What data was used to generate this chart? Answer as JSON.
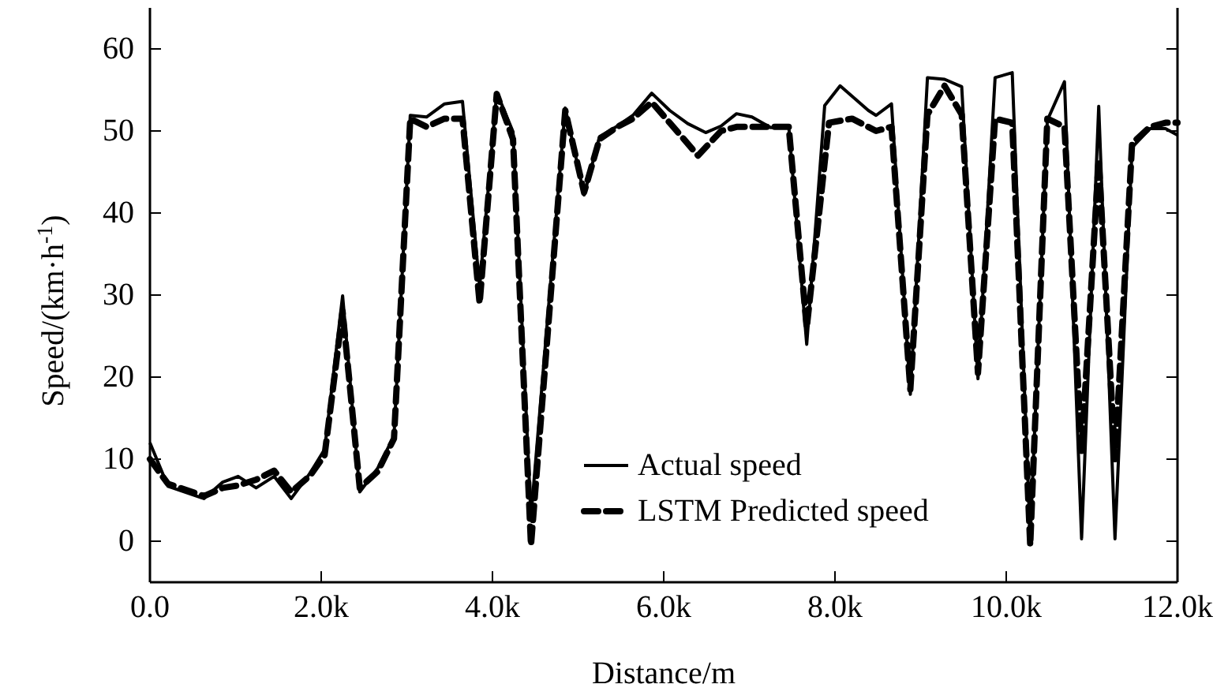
{
  "chart_data": {
    "type": "line",
    "xlabel": "Distance/m",
    "ylabel": "Speed/(km·h$^{-1}$)",
    "xlim": [
      0,
      12000
    ],
    "ylim": [
      -5,
      65
    ],
    "xticks": [
      {
        "value": 0,
        "label": "0.0"
      },
      {
        "value": 2000,
        "label": "2.0k"
      },
      {
        "value": 4000,
        "label": "4.0k"
      },
      {
        "value": 6000,
        "label": "6.0k"
      },
      {
        "value": 8000,
        "label": "8.0k"
      },
      {
        "value": 10000,
        "label": "10.0k"
      },
      {
        "value": 12000,
        "label": "12.0k"
      }
    ],
    "yticks": [
      0,
      10,
      20,
      30,
      40,
      50,
      60
    ],
    "legend": "bottom",
    "grid": false,
    "series": [
      {
        "name": "Actual speed",
        "color": "#000000",
        "line_style": "solid",
        "x": [
          0,
          210,
          630,
          850,
          1030,
          1240,
          1450,
          1650,
          1870,
          2040,
          2250,
          2450,
          2660,
          2850,
          3040,
          3230,
          3440,
          3650,
          3850,
          4050,
          4240,
          4450,
          4850,
          5070,
          5250,
          5460,
          5640,
          5860,
          6070,
          6280,
          6490,
          6670,
          6850,
          7030,
          7250,
          7460,
          7670,
          7880,
          8060,
          8390,
          8480,
          8660,
          8880,
          9080,
          9280,
          9480,
          9670,
          9870,
          10070,
          10280,
          10480,
          10680,
          10880,
          11080,
          11270,
          11470,
          11680,
          11860,
          12000
        ],
        "values": [
          12,
          6.7,
          5.2,
          7.2,
          7.9,
          6.5,
          7.9,
          5.2,
          8.3,
          11.2,
          29.9,
          6,
          8.9,
          12.8,
          51.9,
          51.7,
          53.3,
          53.6,
          31,
          54.7,
          49.9,
          3,
          52.8,
          42.2,
          49.3,
          50.6,
          51.9,
          54.6,
          52.5,
          50.9,
          49.8,
          50.6,
          52.1,
          51.7,
          50.4,
          50.6,
          24,
          53.1,
          55.5,
          52.5,
          51.9,
          53.3,
          17.9,
          56.5,
          56.3,
          55.4,
          19.8,
          56.5,
          57.1,
          0.3,
          51.3,
          56,
          0.3,
          53,
          0.3,
          48,
          50.3,
          50.3,
          49.5
        ]
      },
      {
        "name": "LSTM Predicted speed",
        "color": "#000000",
        "line_style": "dashed",
        "x": [
          0,
          210,
          630,
          850,
          1030,
          1240,
          1450,
          1650,
          1870,
          2040,
          2250,
          2450,
          2660,
          2850,
          3040,
          3230,
          3440,
          3650,
          3850,
          4050,
          4240,
          4450,
          4850,
          5070,
          5250,
          5460,
          5640,
          5860,
          6070,
          6400,
          6670,
          6850,
          7030,
          7250,
          7460,
          7670,
          7930,
          8200,
          8480,
          8660,
          8880,
          9080,
          9280,
          9480,
          9670,
          9870,
          10070,
          10280,
          10480,
          10680,
          10880,
          11080,
          11270,
          11470,
          11680,
          11860,
          12000
        ],
        "values": [
          10,
          7,
          5.5,
          6.5,
          6.8,
          7.5,
          8.6,
          6,
          8,
          10.5,
          28,
          6.5,
          8.5,
          12.5,
          51.5,
          50.5,
          51.5,
          51.5,
          29,
          54.5,
          49,
          -0.5,
          52.5,
          42.5,
          49,
          50.5,
          51.5,
          53.5,
          51,
          47,
          50,
          50.5,
          50.5,
          50.5,
          50.5,
          26,
          51,
          51.5,
          50,
          50.5,
          18.5,
          52,
          55.5,
          52,
          20.5,
          51.5,
          51,
          -0.5,
          51.5,
          50.5,
          11,
          46.5,
          10,
          48.5,
          50.5,
          51,
          51
        ]
      }
    ]
  }
}
